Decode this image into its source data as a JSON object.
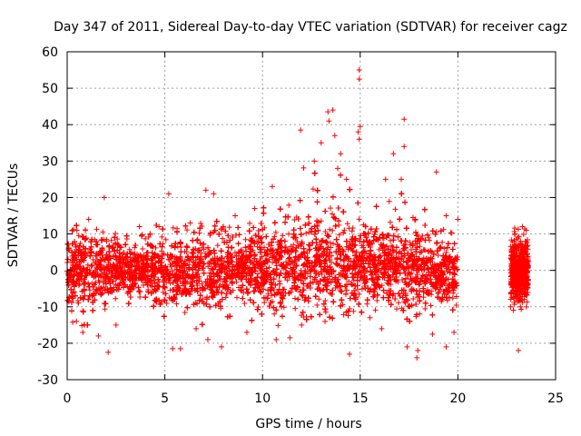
{
  "chart_data": {
    "type": "scatter",
    "title": "Day 347 of 2011, Sidereal Day-to-day VTEC variation (SDTVAR) for receiver cagz",
    "xlabel": "GPS time / hours",
    "ylabel": "SDTVAR / TECUs",
    "xlim": [
      0,
      25
    ],
    "ylim": [
      -30,
      60
    ],
    "x_ticks": [
      0,
      5,
      10,
      15,
      20,
      25
    ],
    "y_ticks": [
      -30,
      -20,
      -10,
      0,
      10,
      20,
      30,
      40,
      50,
      60
    ],
    "grid": true,
    "marker": "+",
    "color": "#ff0000",
    "data_coverage": [
      [
        0,
        20
      ],
      [
        22.7,
        23.6
      ]
    ],
    "envelope_hours": [
      0,
      1,
      2,
      3,
      4,
      5,
      6,
      7,
      8,
      9,
      10,
      11,
      12,
      13,
      14,
      15,
      16,
      17,
      18,
      19,
      20
    ],
    "envelope_upper": [
      12,
      14,
      15,
      10,
      10,
      15,
      12,
      18,
      14,
      12,
      18,
      20,
      28,
      35,
      32,
      20,
      18,
      22,
      18,
      16,
      12
    ],
    "envelope_lower": [
      -14,
      -16,
      -16,
      -10,
      -10,
      -15,
      -12,
      -18,
      -14,
      -12,
      -18,
      -15,
      -14,
      -12,
      -14,
      -12,
      -12,
      -14,
      -15,
      -16,
      -12
    ],
    "points": [
      [
        14.95,
        55
      ],
      [
        14.95,
        52.5
      ],
      [
        13.6,
        44
      ],
      [
        13.35,
        43.5
      ],
      [
        13.4,
        41
      ],
      [
        17.25,
        41.5
      ],
      [
        15.0,
        39.5
      ],
      [
        11.95,
        38.5
      ],
      [
        14.9,
        38
      ],
      [
        13.7,
        37
      ],
      [
        14.95,
        36
      ],
      [
        13.0,
        35
      ],
      [
        14.0,
        32
      ],
      [
        16.7,
        32
      ],
      [
        18.9,
        27
      ],
      [
        12.65,
        30
      ],
      [
        13.85,
        28
      ],
      [
        17.25,
        34
      ],
      [
        17.1,
        25
      ],
      [
        16.3,
        25
      ],
      [
        14.3,
        25
      ],
      [
        1.9,
        20
      ],
      [
        5.2,
        21
      ],
      [
        7.1,
        22
      ],
      [
        7.5,
        21
      ],
      [
        10.5,
        23
      ],
      [
        19.4,
        15
      ],
      [
        9.6,
        17
      ],
      [
        3.7,
        12
      ],
      [
        20.0,
        14
      ],
      [
        4.7,
        12
      ],
      [
        1.1,
        14
      ],
      [
        0.5,
        11
      ],
      [
        6.3,
        13
      ],
      [
        8.6,
        15
      ],
      [
        2.1,
        -22.5
      ],
      [
        5.4,
        -21.5
      ],
      [
        5.8,
        -21.5
      ],
      [
        7.9,
        -21
      ],
      [
        11.4,
        -18.5
      ],
      [
        14.45,
        -23
      ],
      [
        17.4,
        -21
      ],
      [
        17.95,
        -22
      ],
      [
        17.9,
        -24
      ],
      [
        18.7,
        -17.5
      ],
      [
        19.4,
        -21
      ],
      [
        19.8,
        -17
      ],
      [
        12.0,
        -15
      ],
      [
        13.2,
        -14
      ],
      [
        15.5,
        -13
      ],
      [
        0.8,
        -17
      ],
      [
        1.6,
        -18
      ],
      [
        2.5,
        -15
      ],
      [
        6.6,
        -16
      ],
      [
        7.2,
        -19
      ],
      [
        9.2,
        -17
      ],
      [
        10.7,
        -19
      ],
      [
        16.1,
        -16
      ],
      [
        23.1,
        -22
      ],
      [
        23.3,
        12
      ],
      [
        23.5,
        11
      ],
      [
        22.9,
        10
      ],
      [
        22.7,
        -10
      ],
      [
        23.2,
        -10
      ],
      [
        23.4,
        -8
      ]
    ]
  }
}
